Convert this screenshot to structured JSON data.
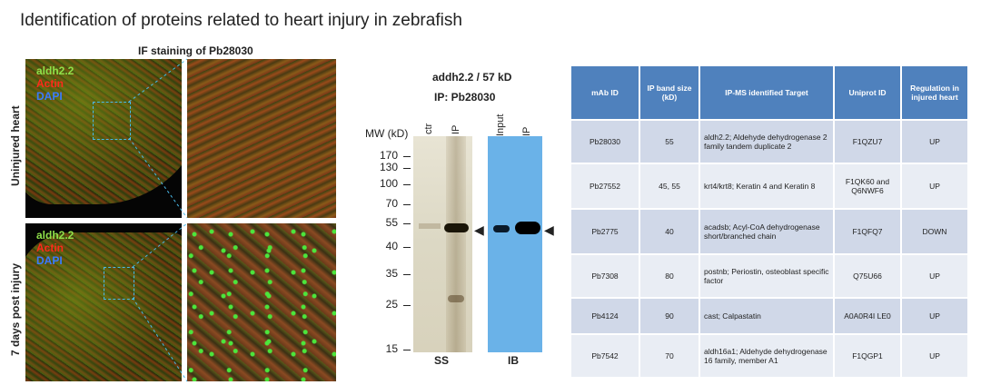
{
  "title": "Identification of proteins related to heart injury in zebrafish",
  "if_section": {
    "heading": "IF staining of Pb28030",
    "stain_labels": [
      {
        "text": "aldh2.2",
        "color": "#8fe04a"
      },
      {
        "text": "Actin",
        "color": "#ff2a1a"
      },
      {
        "text": "DAPI",
        "color": "#3a7bff"
      }
    ],
    "row_labels": [
      "Uninjured heart",
      "7 days post injury"
    ]
  },
  "blot": {
    "header_line1": "addh2.2 / 57 kD",
    "header_line2": "IP: Pb28030",
    "mw_label": "MW (kD)",
    "mw_markers": [
      "170",
      "130",
      "100",
      "70",
      "55",
      "40",
      "35",
      "25",
      "15"
    ],
    "ss_lanes": [
      "ctr",
      "IP"
    ],
    "ib_lanes": [
      "Input",
      "IP"
    ],
    "ss_label": "SS",
    "ib_label": "IB"
  },
  "table": {
    "headers": [
      "mAb ID",
      "IP band size (kD)",
      "IP-MS identified Target",
      "Uniprot ID",
      "Regulation in injured heart"
    ],
    "rows": [
      {
        "mab": "Pb28030",
        "size": "55",
        "target": "aldh2.2; Aldehyde dehydrogenase 2 family tandem duplicate 2",
        "uniprot": "F1QZU7",
        "regulation": "UP"
      },
      {
        "mab": "Pb27552",
        "size": "45, 55",
        "target": "krt4/krt8;  Keratin 4 and Keratin 8",
        "uniprot": "F1QK60 and Q6NWF6",
        "regulation": "UP"
      },
      {
        "mab": "Pb2775",
        "size": "40",
        "target": "acadsb; Acyl-CoA dehydrogenase short/branched chain",
        "uniprot": "F1QFQ7",
        "regulation": "DOWN"
      },
      {
        "mab": "Pb7308",
        "size": "80",
        "target": "postnb; Periostin, osteoblast specific factor",
        "uniprot": "Q75U66",
        "regulation": "UP"
      },
      {
        "mab": "Pb4124",
        "size": "90",
        "target": "cast; Calpastatin",
        "uniprot": "A0A0R4I LE0",
        "regulation": "UP"
      },
      {
        "mab": "Pb7542",
        "size": "70",
        "target": "aldh16a1; Aldehyde dehydrogenase 16 family, member A1",
        "uniprot": "F1QGP1",
        "regulation": "UP"
      }
    ]
  }
}
